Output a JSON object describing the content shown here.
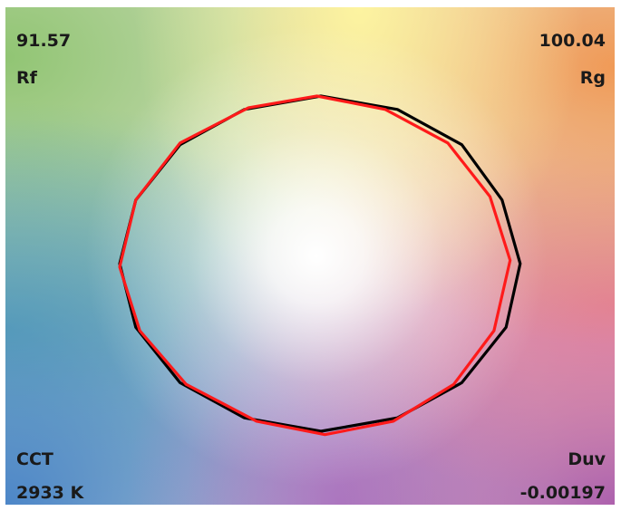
{
  "metrics": {
    "rf_value": "91.57",
    "rf_label": "Rf",
    "rg_value": "100.04",
    "rg_label": "Rg",
    "cct_label": "CCT",
    "cct_value": "2933 K",
    "duv_label": "Duv",
    "duv_value": "-0.00197"
  },
  "colors": {
    "reference": "#000000",
    "test": "#ff1a1a"
  },
  "chart_data": {
    "type": "line",
    "title": "",
    "xlabel": "",
    "ylabel": "",
    "xlim": [
      -1.5,
      1.5
    ],
    "ylim": [
      -1.5,
      1.5
    ],
    "grid": false,
    "series": [
      {
        "color": "#000000",
        "closed": true,
        "points": [
          [
            0.99,
            0.0
          ],
          [
            0.9,
            0.38
          ],
          [
            0.7,
            0.71
          ],
          [
            0.38,
            0.92
          ],
          [
            0.0,
            1.0
          ],
          [
            -0.38,
            0.92
          ],
          [
            -0.7,
            0.71
          ],
          [
            -0.92,
            0.38
          ],
          [
            -1.0,
            0.0
          ],
          [
            -0.92,
            -0.38
          ],
          [
            -0.7,
            -0.71
          ],
          [
            -0.38,
            -0.92
          ],
          [
            0.0,
            -1.0
          ],
          [
            0.38,
            -0.92
          ],
          [
            0.7,
            -0.71
          ],
          [
            0.92,
            -0.38
          ]
        ]
      },
      {
        "color": "#ff1a1a",
        "closed": true,
        "points": [
          [
            0.94,
            0.02
          ],
          [
            0.84,
            0.4
          ],
          [
            0.63,
            0.72
          ],
          [
            0.32,
            0.92
          ],
          [
            -0.02,
            1.0
          ],
          [
            -0.36,
            0.93
          ],
          [
            -0.7,
            0.72
          ],
          [
            -0.92,
            0.38
          ],
          [
            -1.0,
            -0.02
          ],
          [
            -0.9,
            -0.4
          ],
          [
            -0.67,
            -0.72
          ],
          [
            -0.32,
            -0.94
          ],
          [
            0.02,
            -1.02
          ],
          [
            0.36,
            -0.94
          ],
          [
            0.66,
            -0.72
          ],
          [
            0.86,
            -0.4
          ]
        ]
      }
    ]
  }
}
